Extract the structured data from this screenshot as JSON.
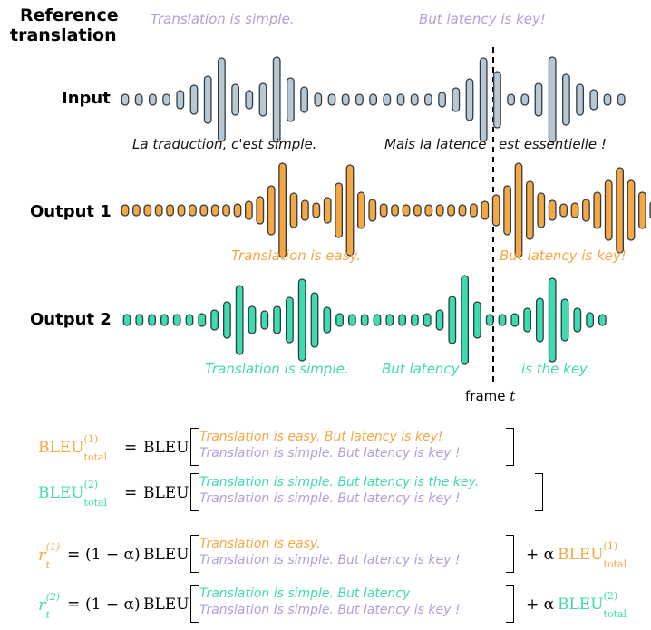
{
  "title_line1": "Reference",
  "title_line2": "translation",
  "colors": {
    "reference": "#b39ddb",
    "input_fill": "#b7c7d3",
    "output1": "#f5a742",
    "output2": "#3ddbb0",
    "stroke": "#2f3b45"
  },
  "reference_captions": [
    "Translation is simple.",
    "But latency is key!"
  ],
  "rows": {
    "input": {
      "label": "Input",
      "captions": [
        "La traduction, c'est simple.",
        "Mais la latence",
        "est essentielle !"
      ]
    },
    "output1": {
      "label": "Output 1",
      "captions": [
        "Translation is easy.",
        "But latency is key!"
      ]
    },
    "output2": {
      "label": "Output 2",
      "captions": [
        "Translation is simple.",
        "But latency",
        "is the key."
      ]
    }
  },
  "frame_label": "frame",
  "frame_var": "t",
  "formulas": {
    "bleu_fn": "BLEU",
    "bleu_total_sup1": "(1)",
    "bleu_total_sup2": "(2)",
    "bleu_total_sub": "total",
    "equals": "=",
    "r_var": "r",
    "r_sub": "t",
    "one_minus_alpha": "(1 − α)",
    "plus_alpha": "+ α",
    "eq1": {
      "top": "Translation is easy. But latency is key!",
      "bottom": "Translation is simple. But latency is key !"
    },
    "eq2": {
      "top": "Translation is simple. But latency is the key.",
      "bottom": "Translation is simple. But latency is key !"
    },
    "eq3": {
      "top": "Translation is easy.",
      "bottom": "Translation is simple. But latency is key !"
    },
    "eq4": {
      "top": "Translation is simple. But latency",
      "bottom": "Translation is simple. But latency is key !"
    }
  }
}
